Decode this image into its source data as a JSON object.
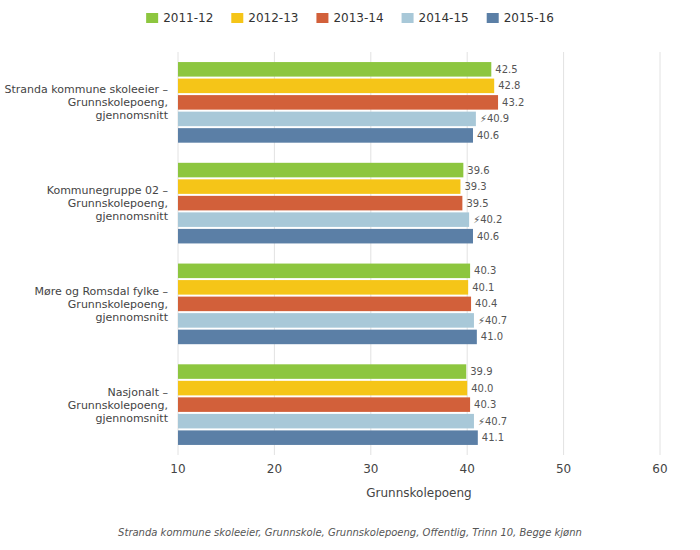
{
  "chart_data": {
    "type": "bar",
    "orientation": "horizontal",
    "xlabel": "Grunnskolepoeng",
    "annotations": [
      "Stranda kommune skoleeier, Grunnskole, Grunnskolepoeng, Offentlig, Trinn 10, Begge kjønn"
    ],
    "categories": [
      "Stranda kommune skoleeier –\nGrunnskolepoeng,\ngjennomsnitt",
      "Kommunegruppe 02 –\nGrunnskolepoeng,\ngjennomsnitt",
      "Møre og Romsdal fylke –\nGrunnskolepoeng,\ngjennomsnitt",
      "Nasjonalt –\nGrunnskolepoeng,\ngjennomsnitt"
    ],
    "series": [
      {
        "name": "2011-12",
        "color": "#8DC63F",
        "values": [
          42.5,
          39.6,
          40.3,
          39.9
        ]
      },
      {
        "name": "2012-13",
        "color": "#F5C518",
        "values": [
          42.8,
          39.3,
          40.1,
          40.0
        ],
        "value_labels": [
          "42.8",
          "39.3",
          "40.1",
          "40.0"
        ]
      },
      {
        "name": "2013-14",
        "color": "#D2603A",
        "values": [
          43.2,
          39.5,
          40.4,
          40.3
        ]
      },
      {
        "name": "2014-15",
        "color": "#A8C8D8",
        "values": [
          40.9,
          40.2,
          40.7,
          40.7
        ],
        "value_labels": [
          "⚡40.9",
          "⚡40.2",
          "⚡40.7",
          "⚡40.7"
        ]
      },
      {
        "name": "2015-16",
        "color": "#5B7FA6",
        "values": [
          40.6,
          40.6,
          41.0,
          41.1
        ],
        "value_labels": [
          "40.6",
          "40.6",
          "41.0",
          "41.1"
        ]
      }
    ],
    "xlim": [
      10,
      60
    ],
    "xticks": [
      10,
      20,
      30,
      40,
      50,
      60
    ],
    "grid": true,
    "legend": "top",
    "data_labels": true
  }
}
